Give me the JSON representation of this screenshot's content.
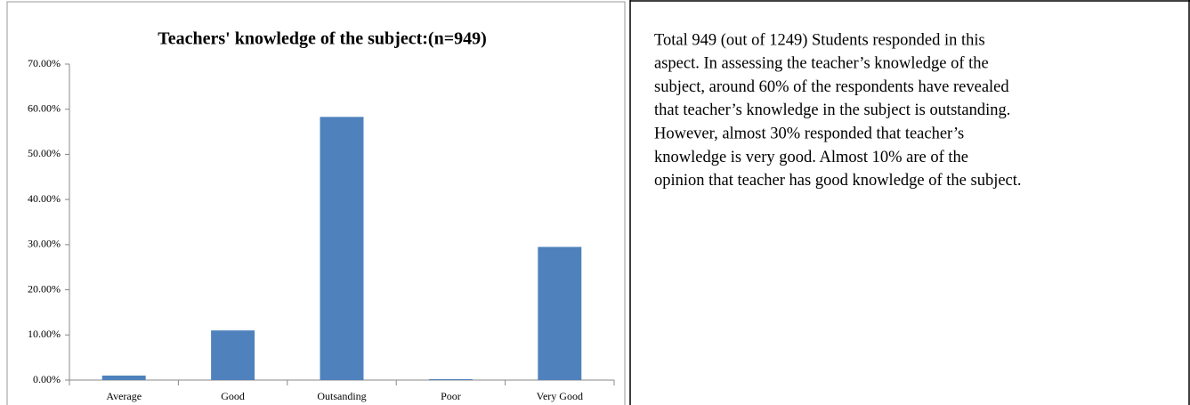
{
  "chart_data": {
    "type": "bar",
    "title": "Teachers' knowledge of the subject:(n=949)",
    "categories": [
      "Average",
      "Good",
      "Outsanding",
      "Poor",
      "Very Good"
    ],
    "values": [
      1.0,
      11.0,
      58.3,
      0.2,
      29.5
    ],
    "color": "#4f81bd",
    "ylim": [
      0,
      70
    ],
    "yticks": [
      {
        "value": 0,
        "label": "0.00%"
      },
      {
        "value": 10,
        "label": "10.00%"
      },
      {
        "value": 20,
        "label": "20.00%"
      },
      {
        "value": 30,
        "label": "30.00%"
      },
      {
        "value": 40,
        "label": "40.00%"
      },
      {
        "value": 50,
        "label": "50.00%"
      },
      {
        "value": 60,
        "label": "60.00%"
      },
      {
        "value": 70,
        "label": "70.00%"
      }
    ],
    "grid": false
  },
  "paragraph_lines": [
    "Total 949 (out of 1249) Students responded in this",
    "aspect. In assessing the teacher’s knowledge of the",
    "subject, around 60% of the respondents have revealed",
    "that teacher’s knowledge in the subject is outstanding.",
    "However, almost 30% responded that teacher’s",
    "knowledge is very good. Almost 10% are of the",
    "opinion that teacher has good knowledge of the subject."
  ]
}
